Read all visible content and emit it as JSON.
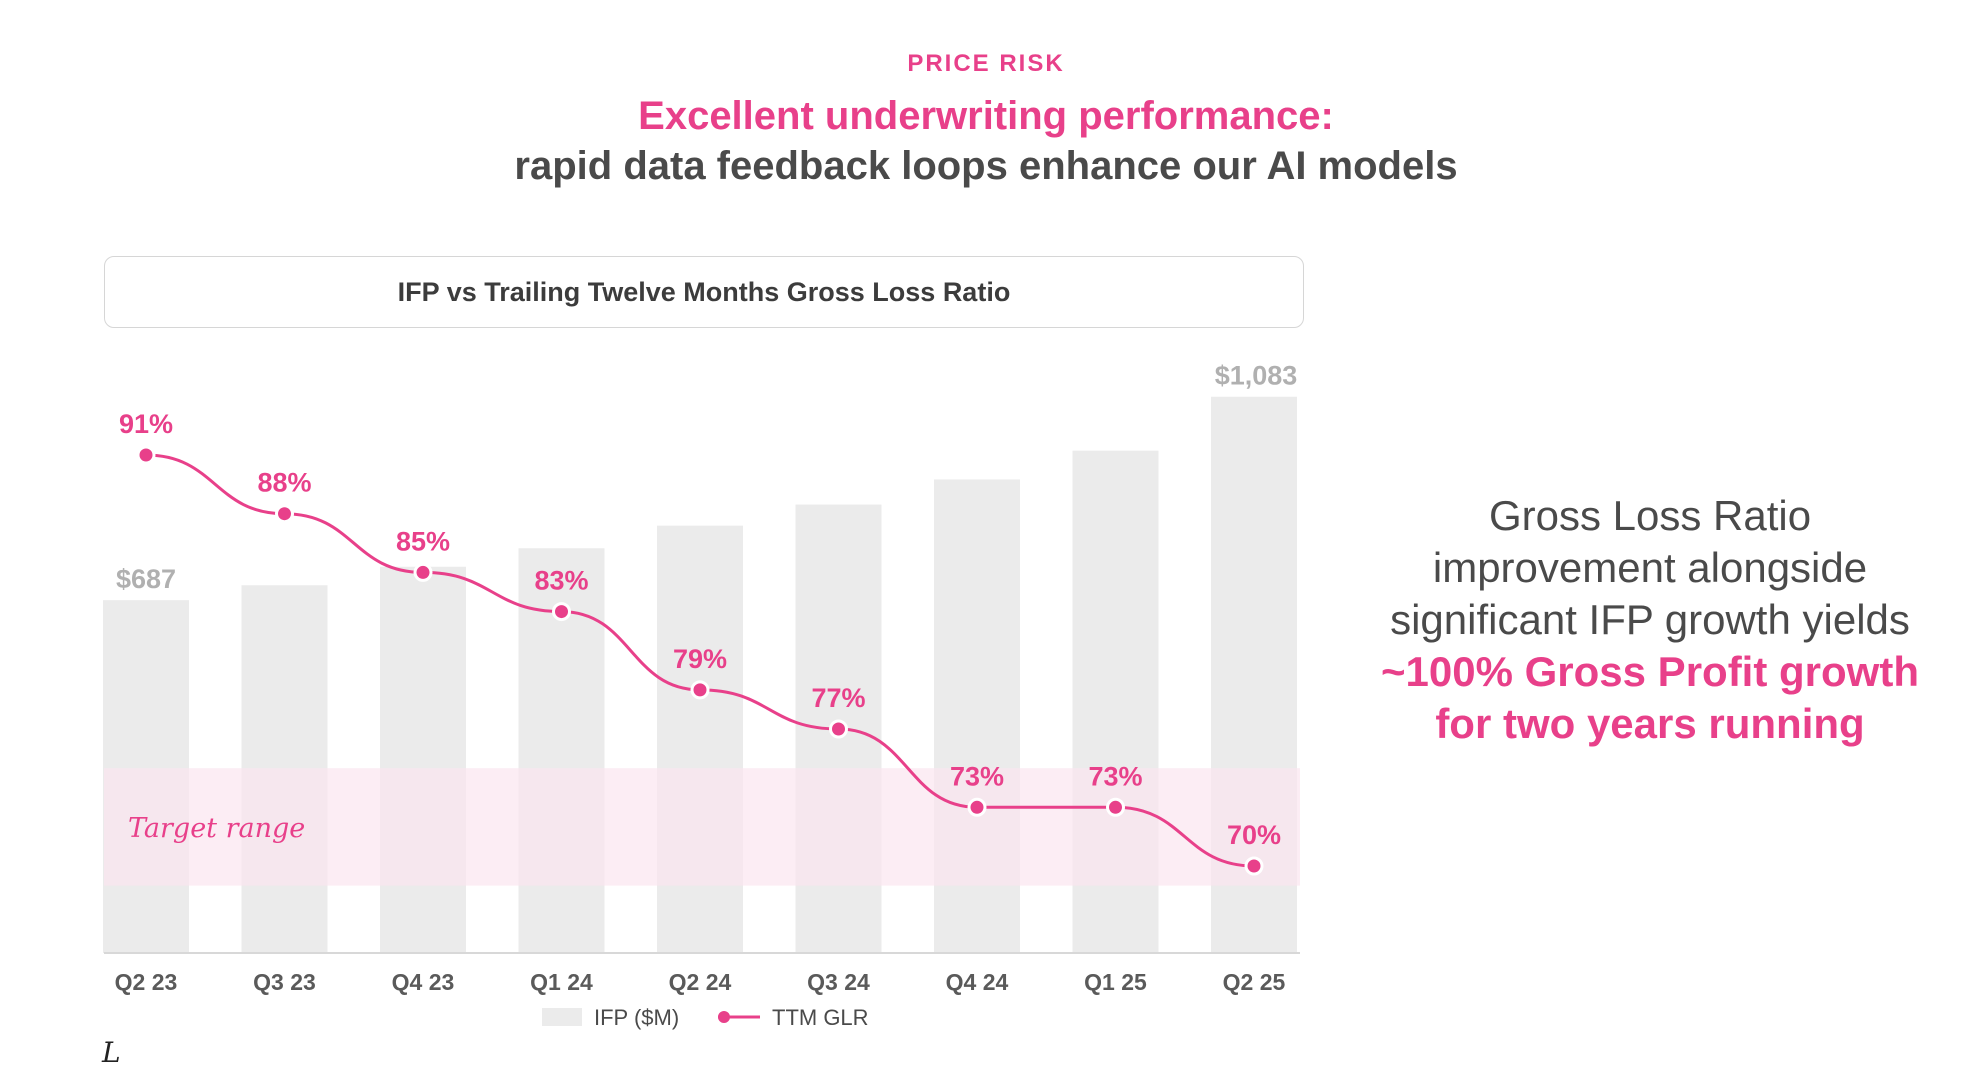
{
  "header": {
    "kicker": "PRICE RISK",
    "title": "Excellent underwriting performance:",
    "subtitle": "rapid data feedback loops enhance our AI models"
  },
  "chart_title": "IFP vs Trailing Twelve Months Gross Loss Ratio",
  "callout": {
    "text": "Gross Loss Ratio improvement alongside significant IFP growth yields",
    "highlight": "~100% Gross Profit growth for two years running"
  },
  "logo": "L",
  "colors": {
    "accent": "#e8408a",
    "bar": "#ebebeb",
    "target_band": "#fbe6f0",
    "bar_label": "#b0b0b0",
    "text": "#4a4a4a"
  },
  "chart_data": {
    "type": "bar+line",
    "title": "IFP vs Trailing Twelve Months Gross Loss Ratio",
    "categories": [
      "Q2 23",
      "Q3 23",
      "Q4 23",
      "Q1 24",
      "Q2 24",
      "Q3 24",
      "Q4 24",
      "Q1 25",
      "Q2 25"
    ],
    "series": [
      {
        "name": "IFP ($M)",
        "type": "bar",
        "values": [
          687,
          716,
          752,
          788,
          832,
          873,
          922,
          978,
          1083
        ],
        "labels": [
          "$687",
          "",
          "",
          "",
          "",
          "",
          "",
          "",
          "$1,083"
        ]
      },
      {
        "name": "TTM GLR",
        "type": "line",
        "values": [
          91,
          88,
          85,
          83,
          79,
          77,
          73,
          73,
          70
        ],
        "labels": [
          "91%",
          "88%",
          "85%",
          "83%",
          "79%",
          "77%",
          "73%",
          "73%",
          "70%"
        ]
      }
    ],
    "target_range": {
      "label": "Target range",
      "min": 69,
      "max": 75
    },
    "bar_ylim": [
      0,
      1100
    ],
    "line_ylim": [
      60,
      93
    ],
    "legend": [
      "IFP ($M)",
      "TTM GLR"
    ],
    "legend_position": "bottom",
    "grid": false
  }
}
